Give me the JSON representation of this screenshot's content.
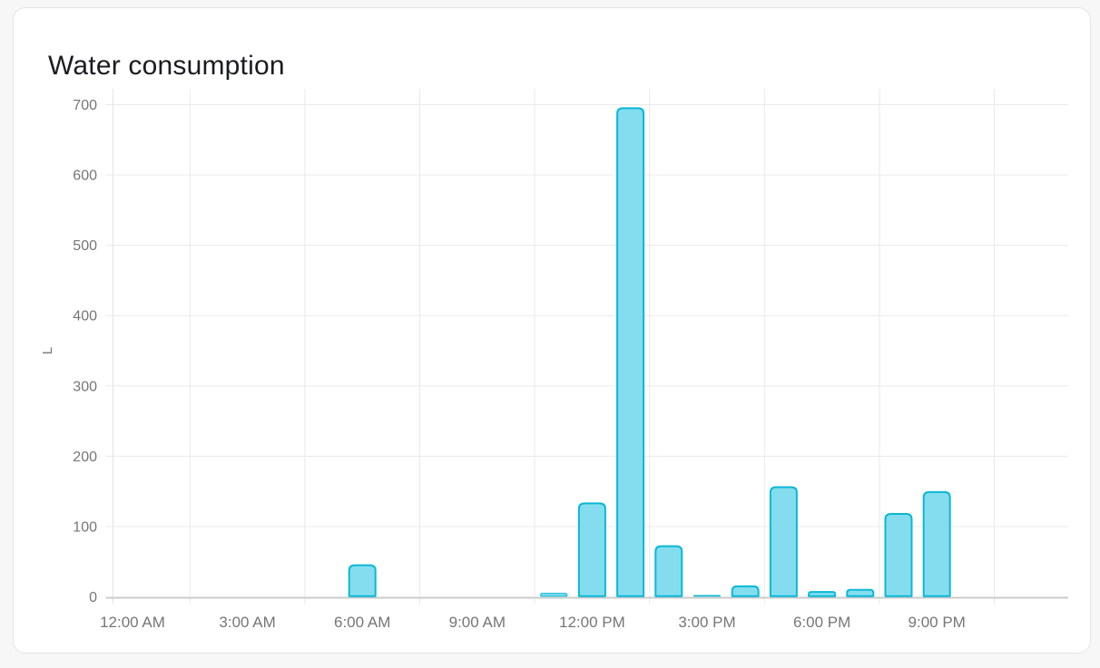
{
  "card": {
    "title": "Water consumption"
  },
  "chart_data": {
    "type": "bar",
    "title": "Water consumption",
    "xlabel": "",
    "ylabel": "L",
    "unit": "L",
    "grid": true,
    "legend": false,
    "y_axis": {
      "min": 0,
      "max": 700,
      "tick_step": 100,
      "tick_labels": [
        "0",
        "100",
        "200",
        "300",
        "400",
        "500",
        "600",
        "700"
      ]
    },
    "x_axis": {
      "tick_labels": [
        "12:00 AM",
        "3:00 AM",
        "6:00 AM",
        "9:00 AM",
        "12:00 PM",
        "3:00 PM",
        "6:00 PM",
        "9:00 PM"
      ],
      "tick_hours": [
        0,
        3,
        6,
        9,
        12,
        15,
        18,
        21
      ],
      "gridline_hours": [
        1.5,
        4.5,
        7.5,
        10.5,
        13.5,
        16.5,
        19.5,
        22.5
      ]
    },
    "series": [
      {
        "name": "Water consumption",
        "points": [
          {
            "time": "6:00 AM",
            "hour": 6,
            "value": 45
          },
          {
            "time": "11:00 AM",
            "hour": 11,
            "value": 5
          },
          {
            "time": "12:00 PM",
            "hour": 12,
            "value": 133
          },
          {
            "time": "1:00 PM",
            "hour": 13,
            "value": 695
          },
          {
            "time": "2:00 PM",
            "hour": 14,
            "value": 72
          },
          {
            "time": "3:00 PM",
            "hour": 15,
            "value": 2
          },
          {
            "time": "4:00 PM",
            "hour": 16,
            "value": 15
          },
          {
            "time": "5:00 PM",
            "hour": 17,
            "value": 156
          },
          {
            "time": "6:00 PM",
            "hour": 18,
            "value": 7
          },
          {
            "time": "7:00 PM",
            "hour": 19,
            "value": 10
          },
          {
            "time": "8:00 PM",
            "hour": 20,
            "value": 118
          },
          {
            "time": "9:00 PM",
            "hour": 21,
            "value": 149
          }
        ]
      }
    ],
    "colors": {
      "bar_fill": "#84ddee",
      "bar_border": "#0bb8d6",
      "gridline": "#eaeaea",
      "axis_line": "#cbcbcb",
      "y_axis_line": "#e3e3e3",
      "tick_label": "#767676",
      "title": "#1b1c1e",
      "card_background": "#ffffff",
      "card_border": "#e4e4e4",
      "page_background": "#f7f7f7"
    }
  }
}
